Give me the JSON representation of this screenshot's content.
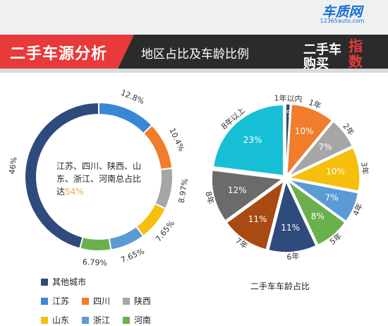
{
  "header": {
    "section_tag": "二手车源分析",
    "section_subtitle": "地区占比及车龄比例",
    "logo": {
      "site_name": "车质网",
      "site_url": "12365auto.com",
      "line1": "二手车",
      "line2": "购买",
      "index_label": "指数"
    }
  },
  "colors": {
    "navy": "#2f4a7c",
    "blue": "#3a87d4",
    "orange": "#ef7d2c",
    "gray": "#a6a6a6",
    "yellow": "#f6bf0d",
    "lightblue": "#5b9bd5",
    "green": "#6ab04c",
    "cyan": "#17bfd6",
    "rust": "#a84a12",
    "darkgray": "#6b6b6b"
  },
  "chart_data": [
    {
      "type": "pie",
      "variant": "donut",
      "center_text_prefix": "江苏、四川、陕西、山东、浙江、河南总占比达",
      "center_text_value": "54%",
      "slices": [
        {
          "label": "江苏",
          "value": 12.8,
          "display": "12.8%",
          "color": "#3a87d4"
        },
        {
          "label": "四川",
          "value": 10.4,
          "display": "10.4%",
          "color": "#ef7d2c"
        },
        {
          "label": "陕西",
          "value": 8.97,
          "display": "8.97%",
          "color": "#a6a6a6"
        },
        {
          "label": "山东",
          "value": 7.65,
          "display": "7.65%",
          "color": "#f6bf0d"
        },
        {
          "label": "浙江",
          "value": 7.65,
          "display": "7.65%",
          "color": "#5b9bd5"
        },
        {
          "label": "河南",
          "value": 6.79,
          "display": "6.79%",
          "color": "#6ab04c"
        },
        {
          "label": "其他城市",
          "value": 46,
          "display": "46%",
          "color": "#2f4a7c"
        }
      ],
      "legend": {
        "row1": [
          {
            "label": "其他城市",
            "color": "#2f4a7c"
          }
        ],
        "row2": [
          {
            "label": "江苏",
            "color": "#3a87d4"
          },
          {
            "label": "四川",
            "color": "#ef7d2c"
          },
          {
            "label": "陕西",
            "color": "#a6a6a6"
          }
        ],
        "row3": [
          {
            "label": "山东",
            "color": "#f6bf0d"
          },
          {
            "label": "浙江",
            "color": "#5b9bd5"
          },
          {
            "label": "河南",
            "color": "#6ab04c"
          }
        ]
      }
    },
    {
      "type": "pie",
      "variant": "exploded",
      "title": "二手车车龄占比",
      "slices": [
        {
          "label": "1年以内",
          "value": 1,
          "display": "1%",
          "color": "#2f4a7c"
        },
        {
          "label": "1年",
          "value": 10,
          "display": "10%",
          "color": "#ef7d2c"
        },
        {
          "label": "2年",
          "value": 7,
          "display": "7%",
          "color": "#a6a6a6"
        },
        {
          "label": "3年",
          "value": 10,
          "display": "10%",
          "color": "#f6bf0d"
        },
        {
          "label": "4年",
          "value": 7,
          "display": "7%",
          "color": "#5b9bd5"
        },
        {
          "label": "5年",
          "value": 8,
          "display": "8%",
          "color": "#6ab04c"
        },
        {
          "label": "6年",
          "value": 11,
          "display": "11%",
          "color": "#2f4a7c"
        },
        {
          "label": "7年",
          "value": 11,
          "display": "11%",
          "color": "#a84a12"
        },
        {
          "label": "8年",
          "value": 12,
          "display": "12%",
          "color": "#6b6b6b"
        },
        {
          "label": "8年以上",
          "value": 23,
          "display": "23%",
          "color": "#17bfd6"
        }
      ]
    }
  ]
}
